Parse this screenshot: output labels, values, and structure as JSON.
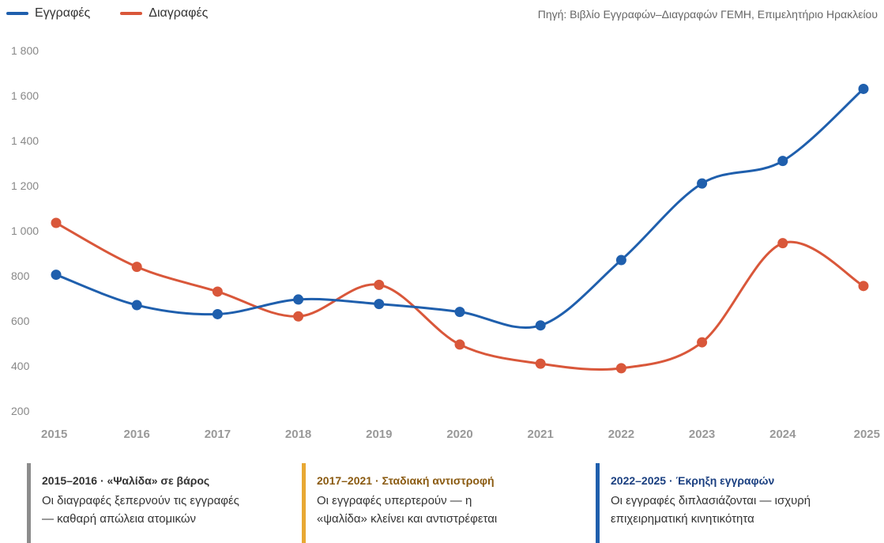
{
  "chart_data": {
    "type": "line",
    "title": "",
    "xlabel": "",
    "ylabel": "",
    "categories": [
      "2015",
      "2016",
      "2017",
      "2018",
      "2019",
      "2020",
      "2021",
      "2022",
      "2023",
      "2024",
      "2025"
    ],
    "ylim": [
      200,
      1800
    ],
    "yticks": [
      200,
      400,
      600,
      800,
      1000,
      1200,
      1400,
      1600,
      1800
    ],
    "ytick_labels": [
      "200",
      "400",
      "600",
      "800",
      "1 000",
      "1 200",
      "1 400",
      "1 600",
      "1 800"
    ],
    "grid": false,
    "legend_position": "top-left",
    "series": [
      {
        "name": "Εγγραφές",
        "color": "#1f5fad",
        "values": [
          805,
          670,
          630,
          695,
          675,
          640,
          580,
          870,
          1210,
          1310,
          1630
        ]
      },
      {
        "name": "Διαγραφές",
        "color": "#d9573a",
        "values": [
          1035,
          840,
          730,
          620,
          760,
          495,
          410,
          390,
          505,
          945,
          755
        ]
      }
    ]
  },
  "legend": {
    "series_1": "Εγγραφές",
    "series_2": "Διαγραφές"
  },
  "source": "Πηγή: Βιβλίο Εγγραφών–Διαγραφών ΓΕΜΗ, Επιμελητήριο Ηρακλείου",
  "periods": [
    {
      "title": "2015–2016 · «Ψαλίδα» σε βάρος",
      "line1": "Οι διαγραφές ξεπερνούν τις εγγραφές",
      "line2": "— καθαρή απώλεια ατομικών",
      "color": "#8c8c8c",
      "title_color": "#333333"
    },
    {
      "title": "2017–2021 · Σταδιακή αντιστροφή",
      "line1": "Οι εγγραφές υπερτερούν — η",
      "line2": "«ψαλίδα» κλείνει και αντιστρέφεται",
      "color": "#e8a833",
      "title_color": "#8a5a10"
    },
    {
      "title": "2022–2025 · Έκρηξη εγγραφών",
      "line1": "Οι εγγραφές διπλασιάζονται — ισχυρή",
      "line2": "επιχειρηματική κινητικότητα",
      "color": "#1f5fad",
      "title_color": "#1a3f80"
    }
  ]
}
